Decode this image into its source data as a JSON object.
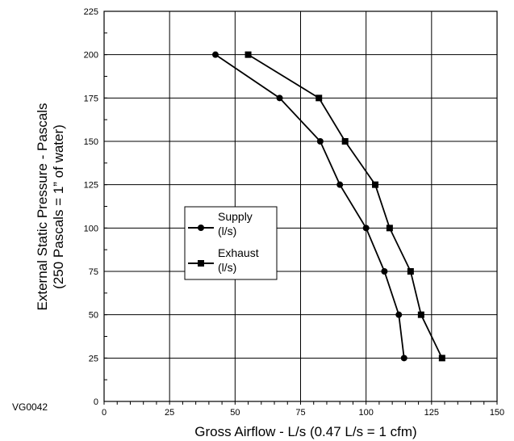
{
  "chart_data": {
    "type": "line",
    "title": "",
    "xlabel": "Gross Airflow - L/s (0.47 L/s = 1 cfm)",
    "ylabel": [
      "External Static Pressure - Pascals",
      "(250 Pascals = 1” of water)"
    ],
    "xlim": [
      0,
      150
    ],
    "ylim": [
      0,
      225
    ],
    "x_ticks": [
      0,
      25,
      50,
      75,
      100,
      125,
      150
    ],
    "y_ticks": [
      0,
      25,
      50,
      75,
      100,
      125,
      150,
      175,
      200,
      225
    ],
    "x_minor_step": 5,
    "y_minor_step": 12.5,
    "grid": true,
    "legend_position": "center-left",
    "series": [
      {
        "name": [
          "Supply",
          "(l/s)"
        ],
        "marker": "circle",
        "color": "#000000",
        "points": [
          {
            "x": 42.5,
            "y": 200
          },
          {
            "x": 67,
            "y": 175
          },
          {
            "x": 82.5,
            "y": 150
          },
          {
            "x": 90,
            "y": 125
          },
          {
            "x": 100,
            "y": 100
          },
          {
            "x": 107,
            "y": 75
          },
          {
            "x": 112.5,
            "y": 50
          },
          {
            "x": 114.5,
            "y": 25
          }
        ]
      },
      {
        "name": [
          "Exhaust",
          "(l/s)"
        ],
        "marker": "square",
        "color": "#000000",
        "points": [
          {
            "x": 55,
            "y": 200
          },
          {
            "x": 82,
            "y": 175
          },
          {
            "x": 92,
            "y": 150
          },
          {
            "x": 103.5,
            "y": 125
          },
          {
            "x": 109,
            "y": 100
          },
          {
            "x": 117,
            "y": 75
          },
          {
            "x": 121,
            "y": 50
          },
          {
            "x": 129,
            "y": 25
          }
        ]
      }
    ]
  },
  "figure_code": "VG0042"
}
